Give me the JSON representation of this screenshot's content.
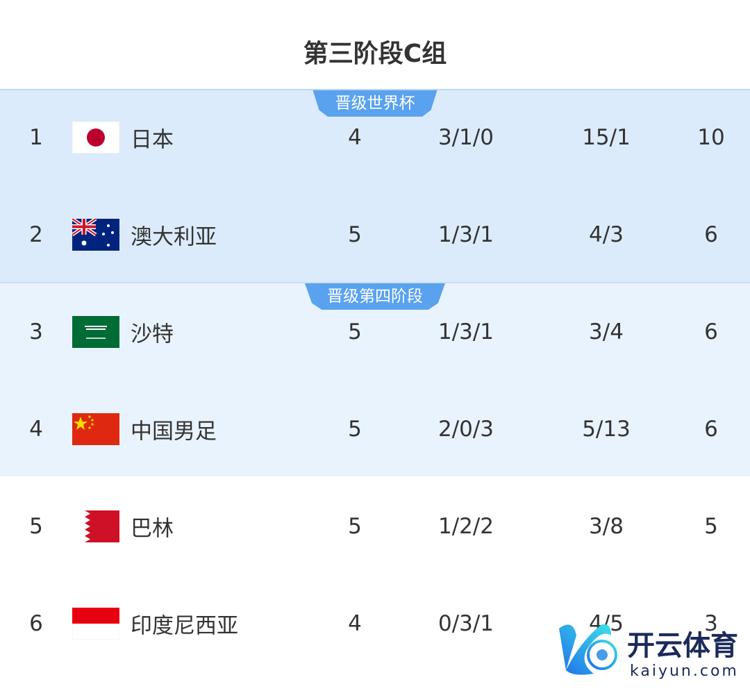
{
  "title": "第三阶段C组",
  "zones": [
    {
      "label": "晋级世界杯",
      "color": "#5aa2ee"
    },
    {
      "label": "晋级第四阶段",
      "color": "#5aa2ee"
    }
  ],
  "rows": [
    {
      "rank": "1",
      "flag": "japan-flag",
      "team": "日本",
      "played": "4",
      "wdl": "3/1/0",
      "goals": "15/1",
      "points": "10"
    },
    {
      "rank": "2",
      "flag": "australia-flag",
      "team": "澳大利亚",
      "played": "5",
      "wdl": "1/3/1",
      "goals": "4/3",
      "points": "6"
    },
    {
      "rank": "3",
      "flag": "saudi-arabia-flag",
      "team": "沙特",
      "played": "5",
      "wdl": "1/3/1",
      "goals": "3/4",
      "points": "6"
    },
    {
      "rank": "4",
      "flag": "china-flag",
      "team": "中国男足",
      "played": "5",
      "wdl": "2/0/3",
      "goals": "5/13",
      "points": "6"
    },
    {
      "rank": "5",
      "flag": "bahrain-flag",
      "team": "巴林",
      "played": "5",
      "wdl": "1/2/2",
      "goals": "3/8",
      "points": "5"
    },
    {
      "rank": "6",
      "flag": "indonesia-flag",
      "team": "印度尼西亚",
      "played": "4",
      "wdl": "0/3/1",
      "goals": "4/5",
      "points": "3"
    }
  ],
  "watermark": {
    "name": "开云体育",
    "url": "kaiyun.com"
  }
}
